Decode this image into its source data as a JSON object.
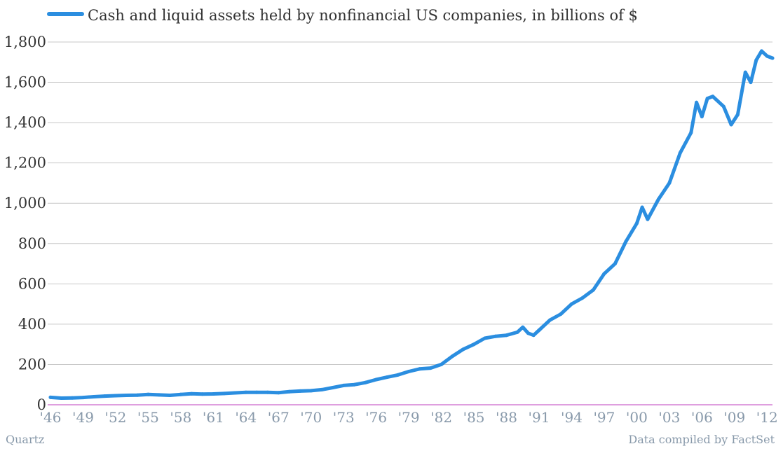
{
  "chart_data": {
    "type": "line",
    "title": "",
    "xlabel": "",
    "ylabel": "",
    "ylim": [
      0,
      1800
    ],
    "xlim": [
      1946,
      2012.5
    ],
    "grid": true,
    "legend_position": "top-left",
    "y_ticks": [
      "0",
      "200",
      "400",
      "600",
      "800",
      "1,000",
      "1,200",
      "1,400",
      "1,600",
      "1,800"
    ],
    "x_ticks": [
      "'46",
      "'49",
      "'52",
      "'55",
      "'58",
      "'61",
      "'64",
      "'67",
      "'70",
      "'73",
      "'76",
      "'79",
      "'82",
      "'85",
      "'88",
      "'91",
      "'94",
      "'97",
      "'00",
      "'03",
      "'06",
      "'09",
      "'12"
    ],
    "series": [
      {
        "name": "Cash and liquid assets held by nonfinancial US companies, in billions of $",
        "color": "#2b8ee0",
        "x": [
          1946,
          1947,
          1948,
          1949,
          1950,
          1951,
          1952,
          1953,
          1954,
          1955,
          1956,
          1957,
          1958,
          1959,
          1960,
          1961,
          1962,
          1963,
          1964,
          1965,
          1966,
          1967,
          1968,
          1969,
          1970,
          1971,
          1972,
          1973,
          1974,
          1975,
          1976,
          1977,
          1978,
          1979,
          1980,
          1981,
          1982,
          1983,
          1984,
          1985,
          1986,
          1987,
          1988,
          1989,
          1989.5,
          1990,
          1990.5,
          1991,
          1992,
          1993,
          1994,
          1995,
          1996,
          1997,
          1998,
          1999,
          2000,
          2000.5,
          2001,
          2002,
          2003,
          2004,
          2005,
          2005.5,
          2006,
          2006.5,
          2007,
          2008,
          2008.7,
          2009.3,
          2010,
          2010.5,
          2011,
          2011.5,
          2012,
          2012.5
        ],
        "values": [
          37,
          33,
          34,
          36,
          40,
          43,
          45,
          47,
          48,
          51,
          49,
          47,
          51,
          55,
          53,
          54,
          56,
          59,
          62,
          62,
          62,
          60,
          65,
          68,
          70,
          75,
          85,
          96,
          100,
          110,
          125,
          137,
          148,
          165,
          178,
          182,
          200,
          240,
          275,
          300,
          330,
          340,
          345,
          360,
          385,
          355,
          345,
          370,
          420,
          450,
          500,
          530,
          570,
          650,
          700,
          810,
          900,
          980,
          920,
          1020,
          1100,
          1250,
          1350,
          1500,
          1430,
          1520,
          1530,
          1480,
          1390,
          1440,
          1650,
          1600,
          1710,
          1755,
          1730,
          1720
        ]
      }
    ],
    "footer_left": "Quartz",
    "footer_right": "Data compiled by FactSet"
  }
}
